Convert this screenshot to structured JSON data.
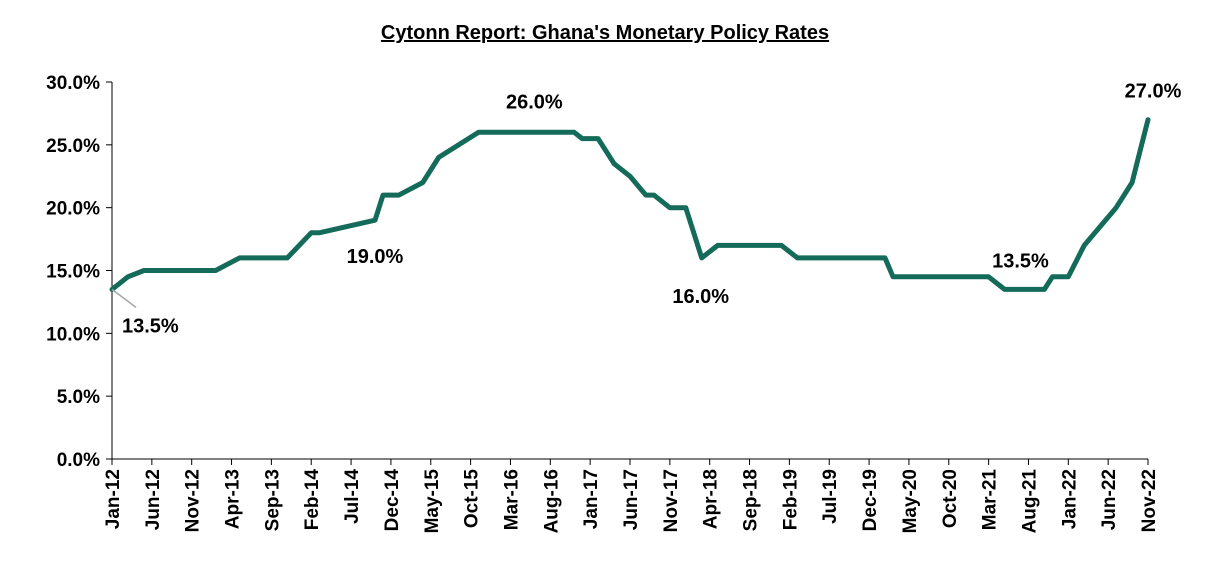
{
  "chart_data": {
    "type": "line",
    "title": "Cytonn Report: Ghana's Monetary Policy Rates",
    "xlabel": "",
    "ylabel": "",
    "ylim": [
      0,
      30
    ],
    "yticks": [
      "0.0%",
      "5.0%",
      "10.0%",
      "15.0%",
      "20.0%",
      "25.0%",
      "30.0%"
    ],
    "xticks": [
      "Jan-12",
      "Jun-12",
      "Nov-12",
      "Apr-13",
      "Sep-13",
      "Feb-14",
      "Jul-14",
      "Dec-14",
      "May-15",
      "Oct-15",
      "Mar-16",
      "Aug-16",
      "Jan-17",
      "Jun-17",
      "Nov-17",
      "Apr-18",
      "Sep-18",
      "Feb-19",
      "Jul-19",
      "Dec-19",
      "May-20",
      "Oct-20",
      "Mar-21",
      "Aug-21",
      "Jan-22",
      "Jun-22",
      "Nov-22"
    ],
    "grid": false,
    "legend": "none",
    "line_color": "#146B5A",
    "series": [
      {
        "points": [
          [
            "Jan-12",
            13.5
          ],
          [
            "Mar-12",
            14.5
          ],
          [
            "May-12",
            15.0
          ],
          [
            "Jul-12",
            15.0
          ],
          [
            "Feb-13",
            15.0
          ],
          [
            "May-13",
            16.0
          ],
          [
            "Nov-13",
            16.0
          ],
          [
            "Feb-14",
            18.0
          ],
          [
            "Mar-14",
            18.0
          ],
          [
            "Oct-14",
            19.0
          ],
          [
            "Nov-14",
            21.0
          ],
          [
            "Jan-15",
            21.0
          ],
          [
            "Apr-15",
            22.0
          ],
          [
            "Jun-15",
            24.0
          ],
          [
            "Nov-15",
            26.0
          ],
          [
            "Nov-16",
            26.0
          ],
          [
            "Dec-16",
            25.5
          ],
          [
            "Feb-17",
            25.5
          ],
          [
            "Apr-17",
            23.5
          ],
          [
            "Jun-17",
            22.5
          ],
          [
            "Aug-17",
            21.0
          ],
          [
            "Sep-17",
            21.0
          ],
          [
            "Nov-17",
            20.0
          ],
          [
            "Jan-18",
            20.0
          ],
          [
            "Mar-18",
            16.0
          ],
          [
            "May-18",
            17.0
          ],
          [
            "Jan-19",
            17.0
          ],
          [
            "Mar-19",
            16.0
          ],
          [
            "Feb-20",
            16.0
          ],
          [
            "Mar-20",
            14.5
          ],
          [
            "Mar-21",
            14.5
          ],
          [
            "May-21",
            13.5
          ],
          [
            "Oct-21",
            13.5
          ],
          [
            "Nov-21",
            14.5
          ],
          [
            "Jan-22",
            14.5
          ],
          [
            "Mar-22",
            17.0
          ],
          [
            "Jul-22",
            20.0
          ],
          [
            "Sep-22",
            22.0
          ],
          [
            "Oct-22",
            24.5
          ],
          [
            "Nov-22",
            27.0
          ]
        ]
      }
    ],
    "annotations": [
      {
        "text": "13.5%",
        "date": "Jan-12",
        "value": 13.5
      },
      {
        "text": "19.0%",
        "date": "Oct-14",
        "value": 19.0
      },
      {
        "text": "26.0%",
        "date": "Jun-16",
        "value": 26.0
      },
      {
        "text": "16.0%",
        "date": "Mar-18",
        "value": 16.0
      },
      {
        "text": "13.5%",
        "date": "Jul-21",
        "value": 13.5
      },
      {
        "text": "27.0%",
        "date": "Nov-22",
        "value": 27.0
      }
    ]
  }
}
